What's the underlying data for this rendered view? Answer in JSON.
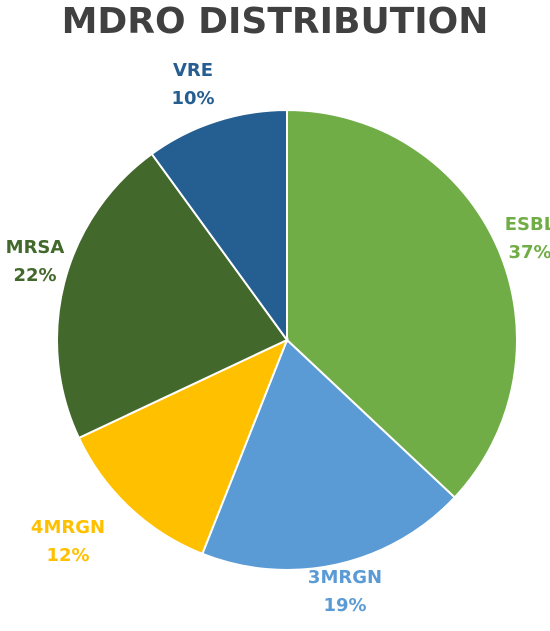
{
  "chart_data": {
    "type": "pie",
    "title": "MDRO DISTRIBUTION",
    "start_angle_deg": 0,
    "direction": "clockwise",
    "slices": [
      {
        "name": "ESBL",
        "value": 37,
        "label": "37%",
        "color": "#70AD47"
      },
      {
        "name": "3MRGN",
        "value": 19,
        "label": "19%",
        "color": "#5B9BD5"
      },
      {
        "name": "4MRGN",
        "value": 12,
        "label": "12%",
        "color": "#FFC000"
      },
      {
        "name": "MRSA",
        "value": 22,
        "label": "22%",
        "color": "#43682B"
      },
      {
        "name": "VRE",
        "value": 10,
        "label": "10%",
        "color": "#255E91"
      }
    ],
    "label_colors": [
      "#70AD47",
      "#5B9BD5",
      "#FFC000",
      "#43682B",
      "#255E91"
    ]
  }
}
